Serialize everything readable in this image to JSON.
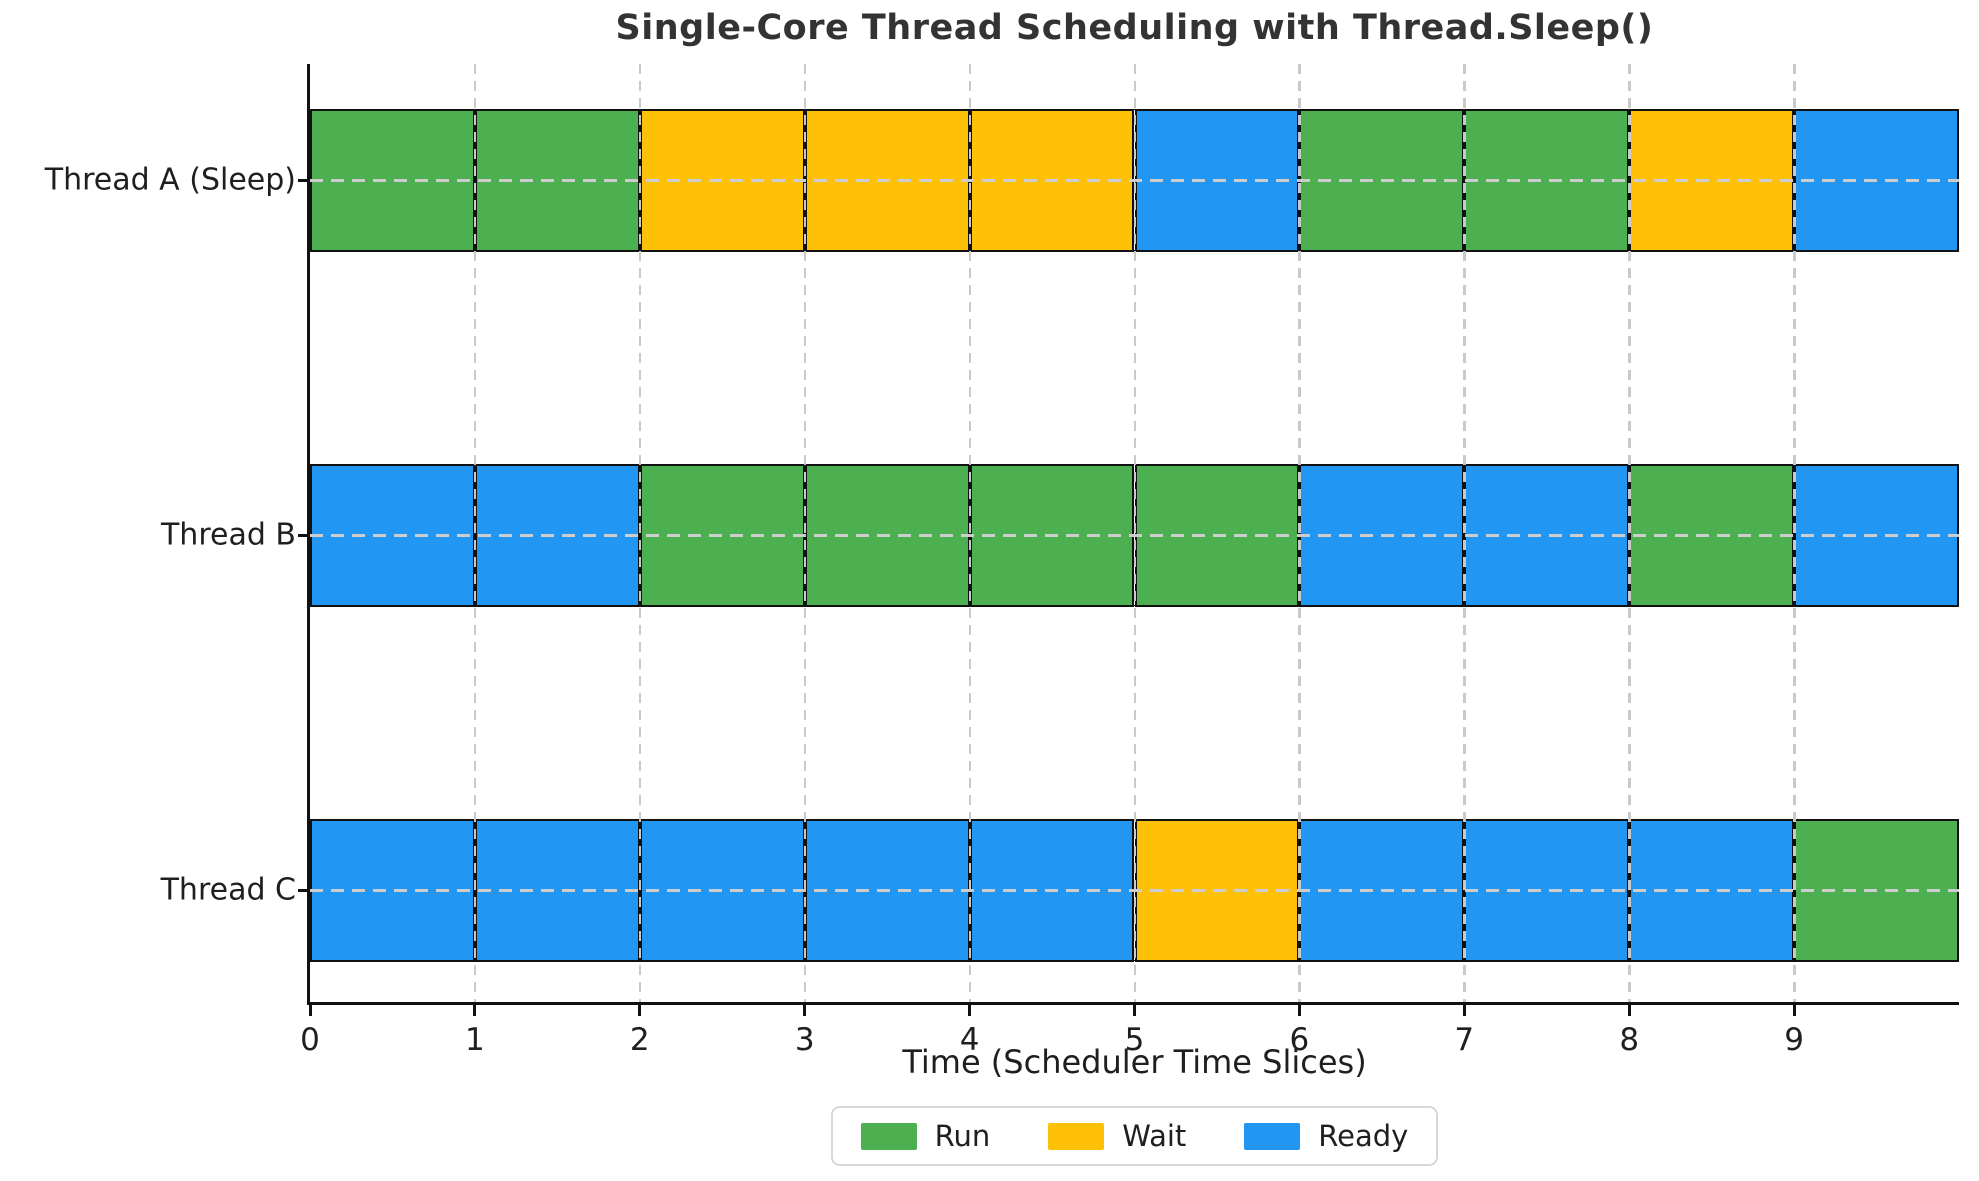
{
  "chart_data": {
    "type": "bar",
    "subtype": "horizontal state timeline (gantt-style scheduler chart)",
    "title": "Single-Core Thread Scheduling with Thread.Sleep()",
    "xlabel": "Time (Scheduler Time Slices)",
    "ylabel": "",
    "xlim": [
      0,
      10
    ],
    "x_ticks": [
      "0",
      "1",
      "2",
      "3",
      "4",
      "5",
      "6",
      "7",
      "8",
      "9"
    ],
    "slice_duration": 1,
    "grid": true,
    "legend_position": "bottom-center",
    "categories": [
      "Thread A (Sleep)",
      "Thread B",
      "Thread C"
    ],
    "rows": [
      {
        "label": "Thread A (Sleep)",
        "states": [
          "Run",
          "Run",
          "Wait",
          "Wait",
          "Wait",
          "Ready",
          "Run",
          "Run",
          "Wait",
          "Ready"
        ]
      },
      {
        "label": "Thread B",
        "states": [
          "Ready",
          "Ready",
          "Run",
          "Run",
          "Run",
          "Run",
          "Ready",
          "Ready",
          "Run",
          "Ready"
        ]
      },
      {
        "label": "Thread C",
        "states": [
          "Ready",
          "Ready",
          "Ready",
          "Ready",
          "Ready",
          "Wait",
          "Ready",
          "Ready",
          "Ready",
          "Run"
        ]
      }
    ],
    "legend": [
      {
        "label": "Run",
        "color": "#4CAF50"
      },
      {
        "label": "Wait",
        "color": "#FFC107"
      },
      {
        "label": "Ready",
        "color": "#2196F3"
      }
    ],
    "colors": {
      "bar_edge": "#111111",
      "grid": "#cccccc",
      "text": "#1f1f1f",
      "title": "#333333"
    }
  }
}
